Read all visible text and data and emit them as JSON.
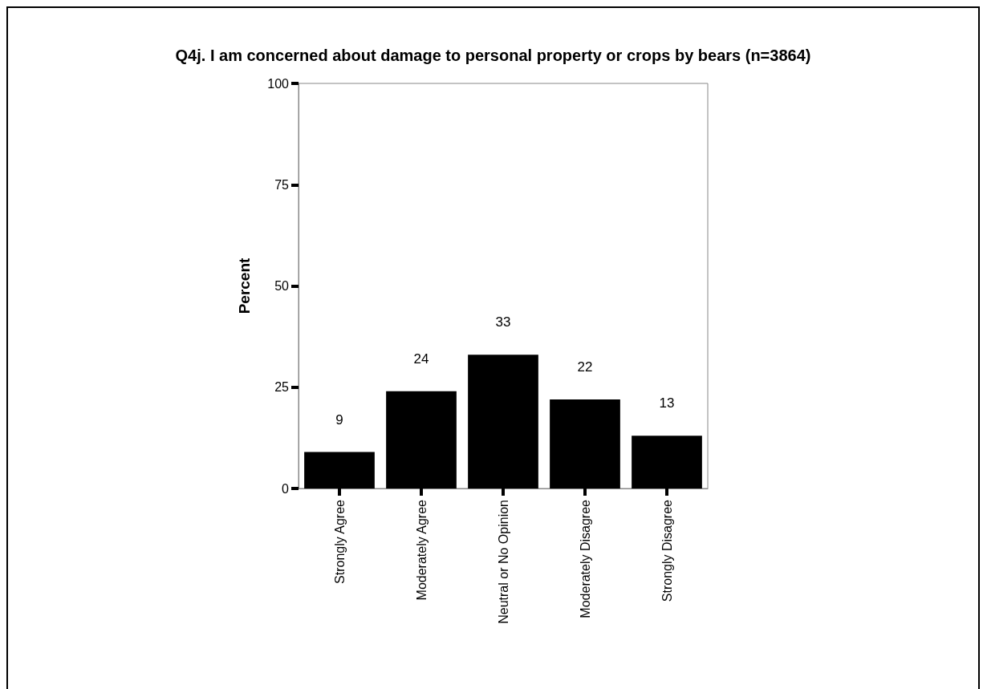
{
  "chart_data": {
    "type": "bar",
    "title": "Q4j. I am concerned about damage to personal property or crops by bears (n=3864)",
    "ylabel": "Percent",
    "categories": [
      "Strongly Agree",
      "Moderately Agree",
      "Neutral or No Opinion",
      "Moderately Disagree",
      "Strongly Disagree"
    ],
    "values": [
      9,
      24,
      33,
      22,
      13
    ],
    "color": "#000000",
    "ylim": [
      0,
      100
    ],
    "yticks": [
      0,
      25,
      50,
      75,
      100
    ],
    "grid": false,
    "data_labels": true
  }
}
